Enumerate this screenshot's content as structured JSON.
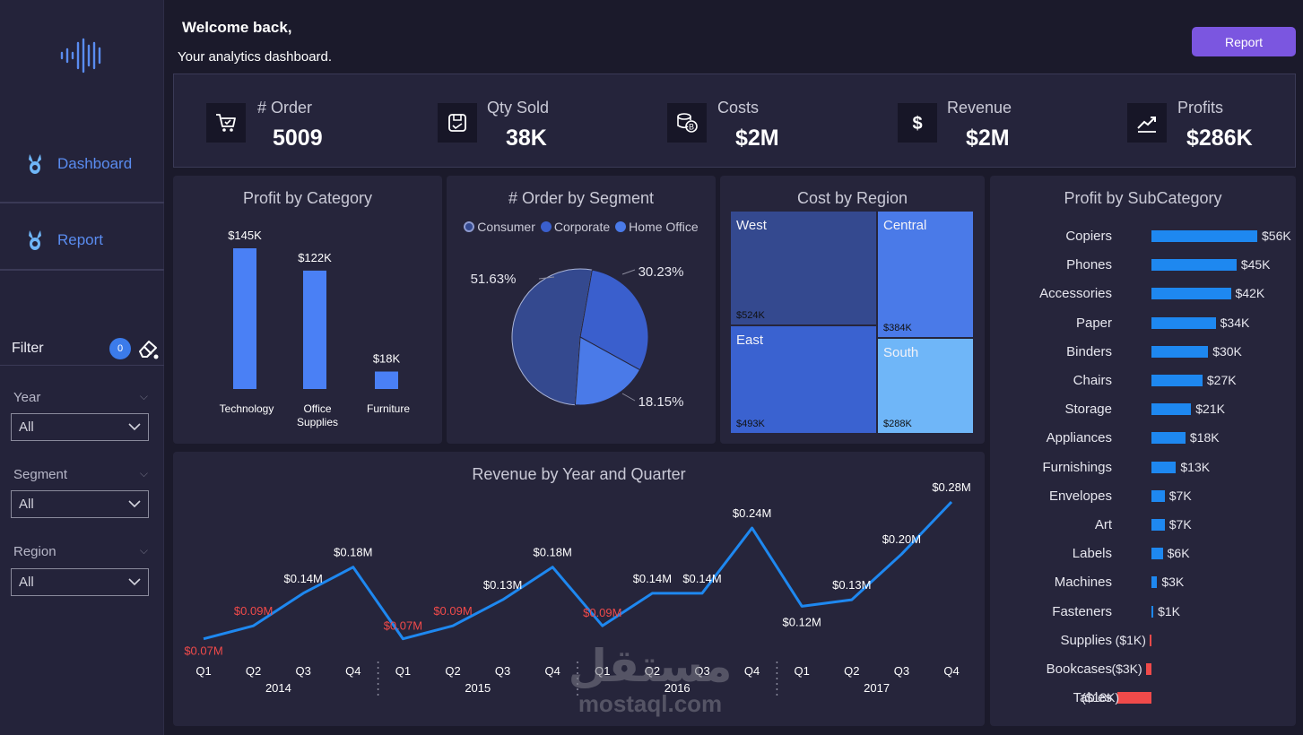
{
  "header": {
    "welcome": "Welcome back,",
    "subtitle": "Your analytics dashboard.",
    "report_button": "Report"
  },
  "sidebar": {
    "nav": [
      {
        "label": "Dashboard",
        "icon": "bunny-icon"
      },
      {
        "label": "Report",
        "icon": "bunny-icon"
      }
    ],
    "filter": {
      "title": "Filter",
      "count": "0"
    },
    "slicers": [
      {
        "label": "Year",
        "value": "All"
      },
      {
        "label": "Segment",
        "value": "All"
      },
      {
        "label": "Region",
        "value": "All"
      }
    ]
  },
  "kpis": [
    {
      "label": "# Order",
      "value": "5009",
      "icon": "cart-icon"
    },
    {
      "label": "Qty Sold",
      "value": "38K",
      "icon": "box-icon"
    },
    {
      "label": "Costs",
      "value": "$2M",
      "icon": "coins-icon"
    },
    {
      "label": "Revenue",
      "value": "$2M",
      "icon": "dollar-icon"
    },
    {
      "label": "Profits",
      "value": "$286K",
      "icon": "trend-icon"
    }
  ],
  "colors": {
    "accent": "#4a80f5",
    "line": "#1e88f0",
    "negative": "#f04a4a",
    "button": "#7b56e0",
    "panel": "#26253b",
    "background": "#1b1a2b"
  },
  "chart_data": [
    {
      "type": "bar",
      "title": "Profit by Category",
      "categories": [
        "Technology",
        "Office Supplies",
        "Furniture"
      ],
      "category_lines": [
        [
          "Technology"
        ],
        [
          "Office",
          "Supplies"
        ],
        [
          "Furniture"
        ]
      ],
      "values": [
        145,
        122,
        18
      ],
      "labels": [
        "$145K",
        "$122K",
        "$18K"
      ],
      "unit": "K$"
    },
    {
      "type": "pie",
      "title": "# Order by Segment",
      "legend": [
        "Consumer",
        "Corporate",
        "Home Office"
      ],
      "values": [
        51.63,
        30.23,
        18.15
      ],
      "labels": [
        "51.63%",
        "30.23%",
        "18.15%"
      ],
      "colors": [
        "#34498f",
        "#3a5fcd",
        "#4a7ae8"
      ]
    },
    {
      "type": "treemap",
      "title": "Cost by Region",
      "items": [
        {
          "name": "West",
          "label": "$524K",
          "value": 524,
          "color": "#34498f"
        },
        {
          "name": "East",
          "label": "$493K",
          "value": 493,
          "color": "#3a62d0"
        },
        {
          "name": "Central",
          "label": "$384K",
          "value": 384,
          "color": "#4a7ae8"
        },
        {
          "name": "South",
          "label": "$288K",
          "value": 288,
          "color": "#6fb6f8"
        }
      ]
    },
    {
      "type": "bar",
      "orientation": "horizontal",
      "title": "Profit by SubCategory",
      "categories": [
        "Copiers",
        "Phones",
        "Accessories",
        "Paper",
        "Binders",
        "Chairs",
        "Storage",
        "Appliances",
        "Furnishings",
        "Envelopes",
        "Art",
        "Labels",
        "Machines",
        "Fasteners",
        "Supplies",
        "Bookcases",
        "Tables"
      ],
      "values": [
        56,
        45,
        42,
        34,
        30,
        27,
        21,
        18,
        13,
        7,
        7,
        6,
        3,
        1,
        -1,
        -3,
        -18
      ],
      "labels": [
        "$56K",
        "$45K",
        "$42K",
        "$34K",
        "$30K",
        "$27K",
        "$21K",
        "$18K",
        "$13K",
        "$7K",
        "$7K",
        "$6K",
        "$3K",
        "$1K",
        "($1K)",
        "($3K)",
        "($18K)"
      ]
    },
    {
      "type": "line",
      "title": "Revenue by Year and Quarter",
      "years": [
        "2014",
        "2015",
        "2016",
        "2017"
      ],
      "quarters": [
        "Q1",
        "Q2",
        "Q3",
        "Q4"
      ],
      "values": [
        0.07,
        0.09,
        0.14,
        0.18,
        0.07,
        0.09,
        0.13,
        0.18,
        0.09,
        0.14,
        0.14,
        0.24,
        0.12,
        0.13,
        0.2,
        0.28
      ],
      "labels": [
        "$0.07M",
        "$0.09M",
        "$0.14M",
        "$0.18M",
        "$0.07M",
        "$0.09M",
        "$0.13M",
        "$0.18M",
        "$0.09M",
        "$0.14M",
        "$0.14M",
        "$0.24M",
        "$0.12M",
        "$0.13M",
        "$0.20M",
        "$0.28M"
      ],
      "highlight_low": [
        0,
        1,
        4,
        5,
        8
      ]
    }
  ],
  "watermark": {
    "arabic": "مستقل",
    "latin": "mostaql.com"
  }
}
